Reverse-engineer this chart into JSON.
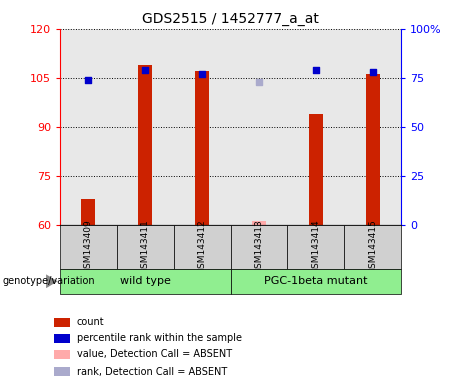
{
  "title": "GDS2515 / 1452777_a_at",
  "samples": [
    "GSM143409",
    "GSM143411",
    "GSM143412",
    "GSM143413",
    "GSM143414",
    "GSM143415"
  ],
  "bar_values": [
    68,
    109,
    107,
    null,
    94,
    106
  ],
  "bar_absent_values": [
    null,
    null,
    null,
    61,
    null,
    null
  ],
  "dot_values_pct": [
    74,
    79,
    77,
    null,
    79,
    78
  ],
  "dot_absent_values_pct": [
    null,
    null,
    null,
    73,
    null,
    null
  ],
  "ylim_left": [
    60,
    120
  ],
  "ylim_right": [
    0,
    100
  ],
  "yticks_left": [
    60,
    75,
    90,
    105,
    120
  ],
  "yticks_right": [
    0,
    25,
    50,
    75,
    100
  ],
  "bar_color": "#cc2200",
  "bar_absent_color": "#ffaaaa",
  "dot_color": "#0000cc",
  "dot_absent_color": "#aaaacc",
  "plot_bg": "#e8e8e8",
  "legend_items": [
    {
      "label": "count",
      "color": "#cc2200"
    },
    {
      "label": "percentile rank within the sample",
      "color": "#0000cc"
    },
    {
      "label": "value, Detection Call = ABSENT",
      "color": "#ffaaaa"
    },
    {
      "label": "rank, Detection Call = ABSENT",
      "color": "#aaaacc"
    }
  ],
  "genotype_label": "genotype/variation",
  "group_wt_label": "wild type",
  "group_pgc_label": "PGC-1beta mutant",
  "group_color": "#90ee90"
}
